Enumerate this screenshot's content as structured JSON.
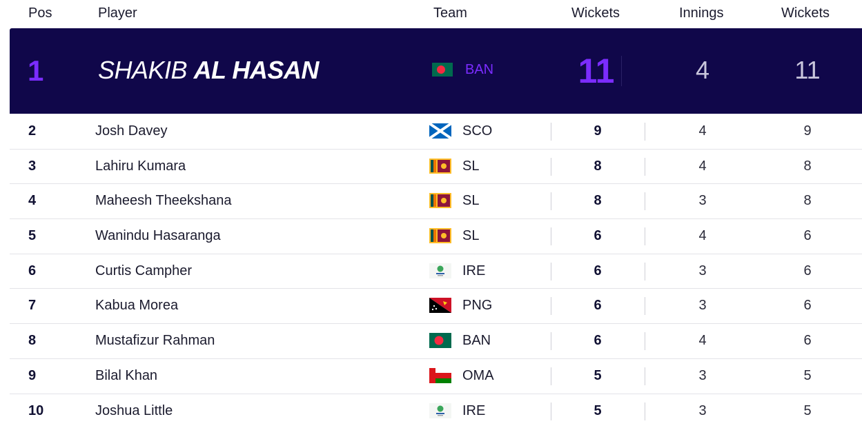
{
  "header": {
    "pos": "Pos",
    "player": "Player",
    "team": "Team",
    "wickets": "Wickets",
    "innings": "Innings",
    "wickets2": "Wickets"
  },
  "leader": {
    "pos": "1",
    "first_name": "SHAKIB",
    "last_name": "AL HASAN",
    "flag": "flag-ban",
    "team": "BAN",
    "wickets": "11",
    "innings": "4",
    "wickets2": "11"
  },
  "rows": [
    {
      "pos": "2",
      "name": "Josh Davey",
      "flag": "flag-sco",
      "team": "SCO",
      "wickets": "9",
      "innings": "4",
      "wickets2": "9"
    },
    {
      "pos": "3",
      "name": "Lahiru Kumara",
      "flag": "flag-sl",
      "team": "SL",
      "wickets": "8",
      "innings": "4",
      "wickets2": "8"
    },
    {
      "pos": "4",
      "name": "Maheesh Theekshana",
      "flag": "flag-sl",
      "team": "SL",
      "wickets": "8",
      "innings": "3",
      "wickets2": "8"
    },
    {
      "pos": "5",
      "name": "Wanindu Hasaranga",
      "flag": "flag-sl",
      "team": "SL",
      "wickets": "6",
      "innings": "4",
      "wickets2": "6"
    },
    {
      "pos": "6",
      "name": "Curtis Campher",
      "flag": "flag-ire",
      "team": "IRE",
      "wickets": "6",
      "innings": "3",
      "wickets2": "6"
    },
    {
      "pos": "7",
      "name": "Kabua Morea",
      "flag": "flag-png",
      "team": "PNG",
      "wickets": "6",
      "innings": "3",
      "wickets2": "6"
    },
    {
      "pos": "8",
      "name": "Mustafizur Rahman",
      "flag": "flag-ban",
      "team": "BAN",
      "wickets": "6",
      "innings": "4",
      "wickets2": "6"
    },
    {
      "pos": "9",
      "name": "Bilal Khan",
      "flag": "flag-oma",
      "team": "OMA",
      "wickets": "5",
      "innings": "3",
      "wickets2": "5"
    },
    {
      "pos": "10",
      "name": "Joshua Little",
      "flag": "flag-ire",
      "team": "IRE",
      "wickets": "5",
      "innings": "3",
      "wickets2": "5"
    }
  ],
  "colors": {
    "leader_bg": "#10074a",
    "accent": "#7b2cff"
  }
}
